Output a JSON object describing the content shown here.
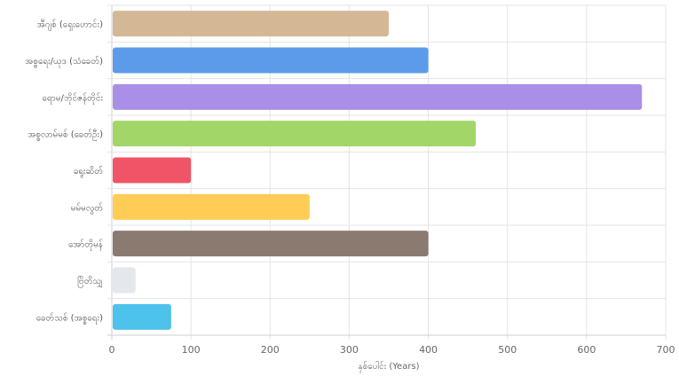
{
  "chart_data": {
    "type": "bar",
    "orientation": "horizontal",
    "categories": [
      "အီဂျစ် (ရှေးဟောင်း)",
      "အစ္စရေး/ယုဒ (သံခေတ်)",
      "ရောမ/ဘိုင်ဇန်တိုင်း",
      "အစ္စလာမ်မစ် (ခေတ်ဦး)",
      "ခရူးဆိတ်",
      "မမ်မလွတ်",
      "အော်တိုမန်",
      "ဗြိတိသျှ",
      "ခေတ်သစ် (အစ္စရေး)"
    ],
    "values": [
      350,
      400,
      670,
      460,
      100,
      250,
      400,
      30,
      75
    ],
    "colors": [
      "#d4b896",
      "#5b9bea",
      "#aa8fe8",
      "#a2d669",
      "#ef5567",
      "#ffcc55",
      "#8a7a70",
      "#e4e7ec",
      "#4dc2ea"
    ],
    "xlabel": "နှစ်ပေါင်း (Years)",
    "xlim": [
      0,
      700
    ],
    "xticks": [
      0,
      100,
      200,
      300,
      400,
      500,
      600,
      700
    ],
    "grid": true,
    "legend": "none"
  }
}
